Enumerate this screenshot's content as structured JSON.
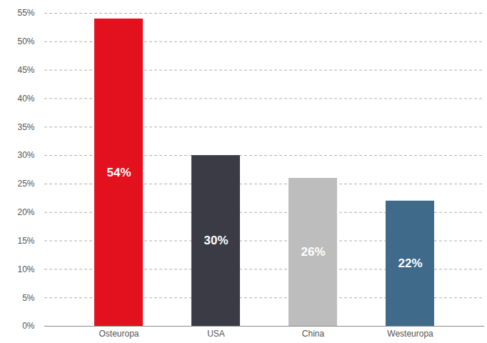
{
  "chart_data": {
    "type": "bar",
    "categories": [
      "Osteuropa",
      "USA",
      "China",
      "Westeuropa"
    ],
    "values": [
      54,
      30,
      26,
      22
    ],
    "value_labels": [
      "54%",
      "30%",
      "26%",
      "22%"
    ],
    "colors": [
      "#e3101e",
      "#3b3b45",
      "#bdbdbd",
      "#3f6a8a"
    ],
    "ylim": [
      0,
      55
    ],
    "yticks": [
      {
        "value": 0,
        "label": "0%"
      },
      {
        "value": 5,
        "label": "5%"
      },
      {
        "value": 10,
        "label": "10%"
      },
      {
        "value": 15,
        "label": "15%"
      },
      {
        "value": 20,
        "label": "20%"
      },
      {
        "value": 25,
        "label": "25%"
      },
      {
        "value": 30,
        "label": "30%"
      },
      {
        "value": 35,
        "label": "35%"
      },
      {
        "value": 40,
        "label": "40%"
      },
      {
        "value": 45,
        "label": "45%"
      },
      {
        "value": 50,
        "label": "50%"
      },
      {
        "value": 55,
        "label": "55%"
      }
    ],
    "grid": true,
    "data_labels": true
  }
}
